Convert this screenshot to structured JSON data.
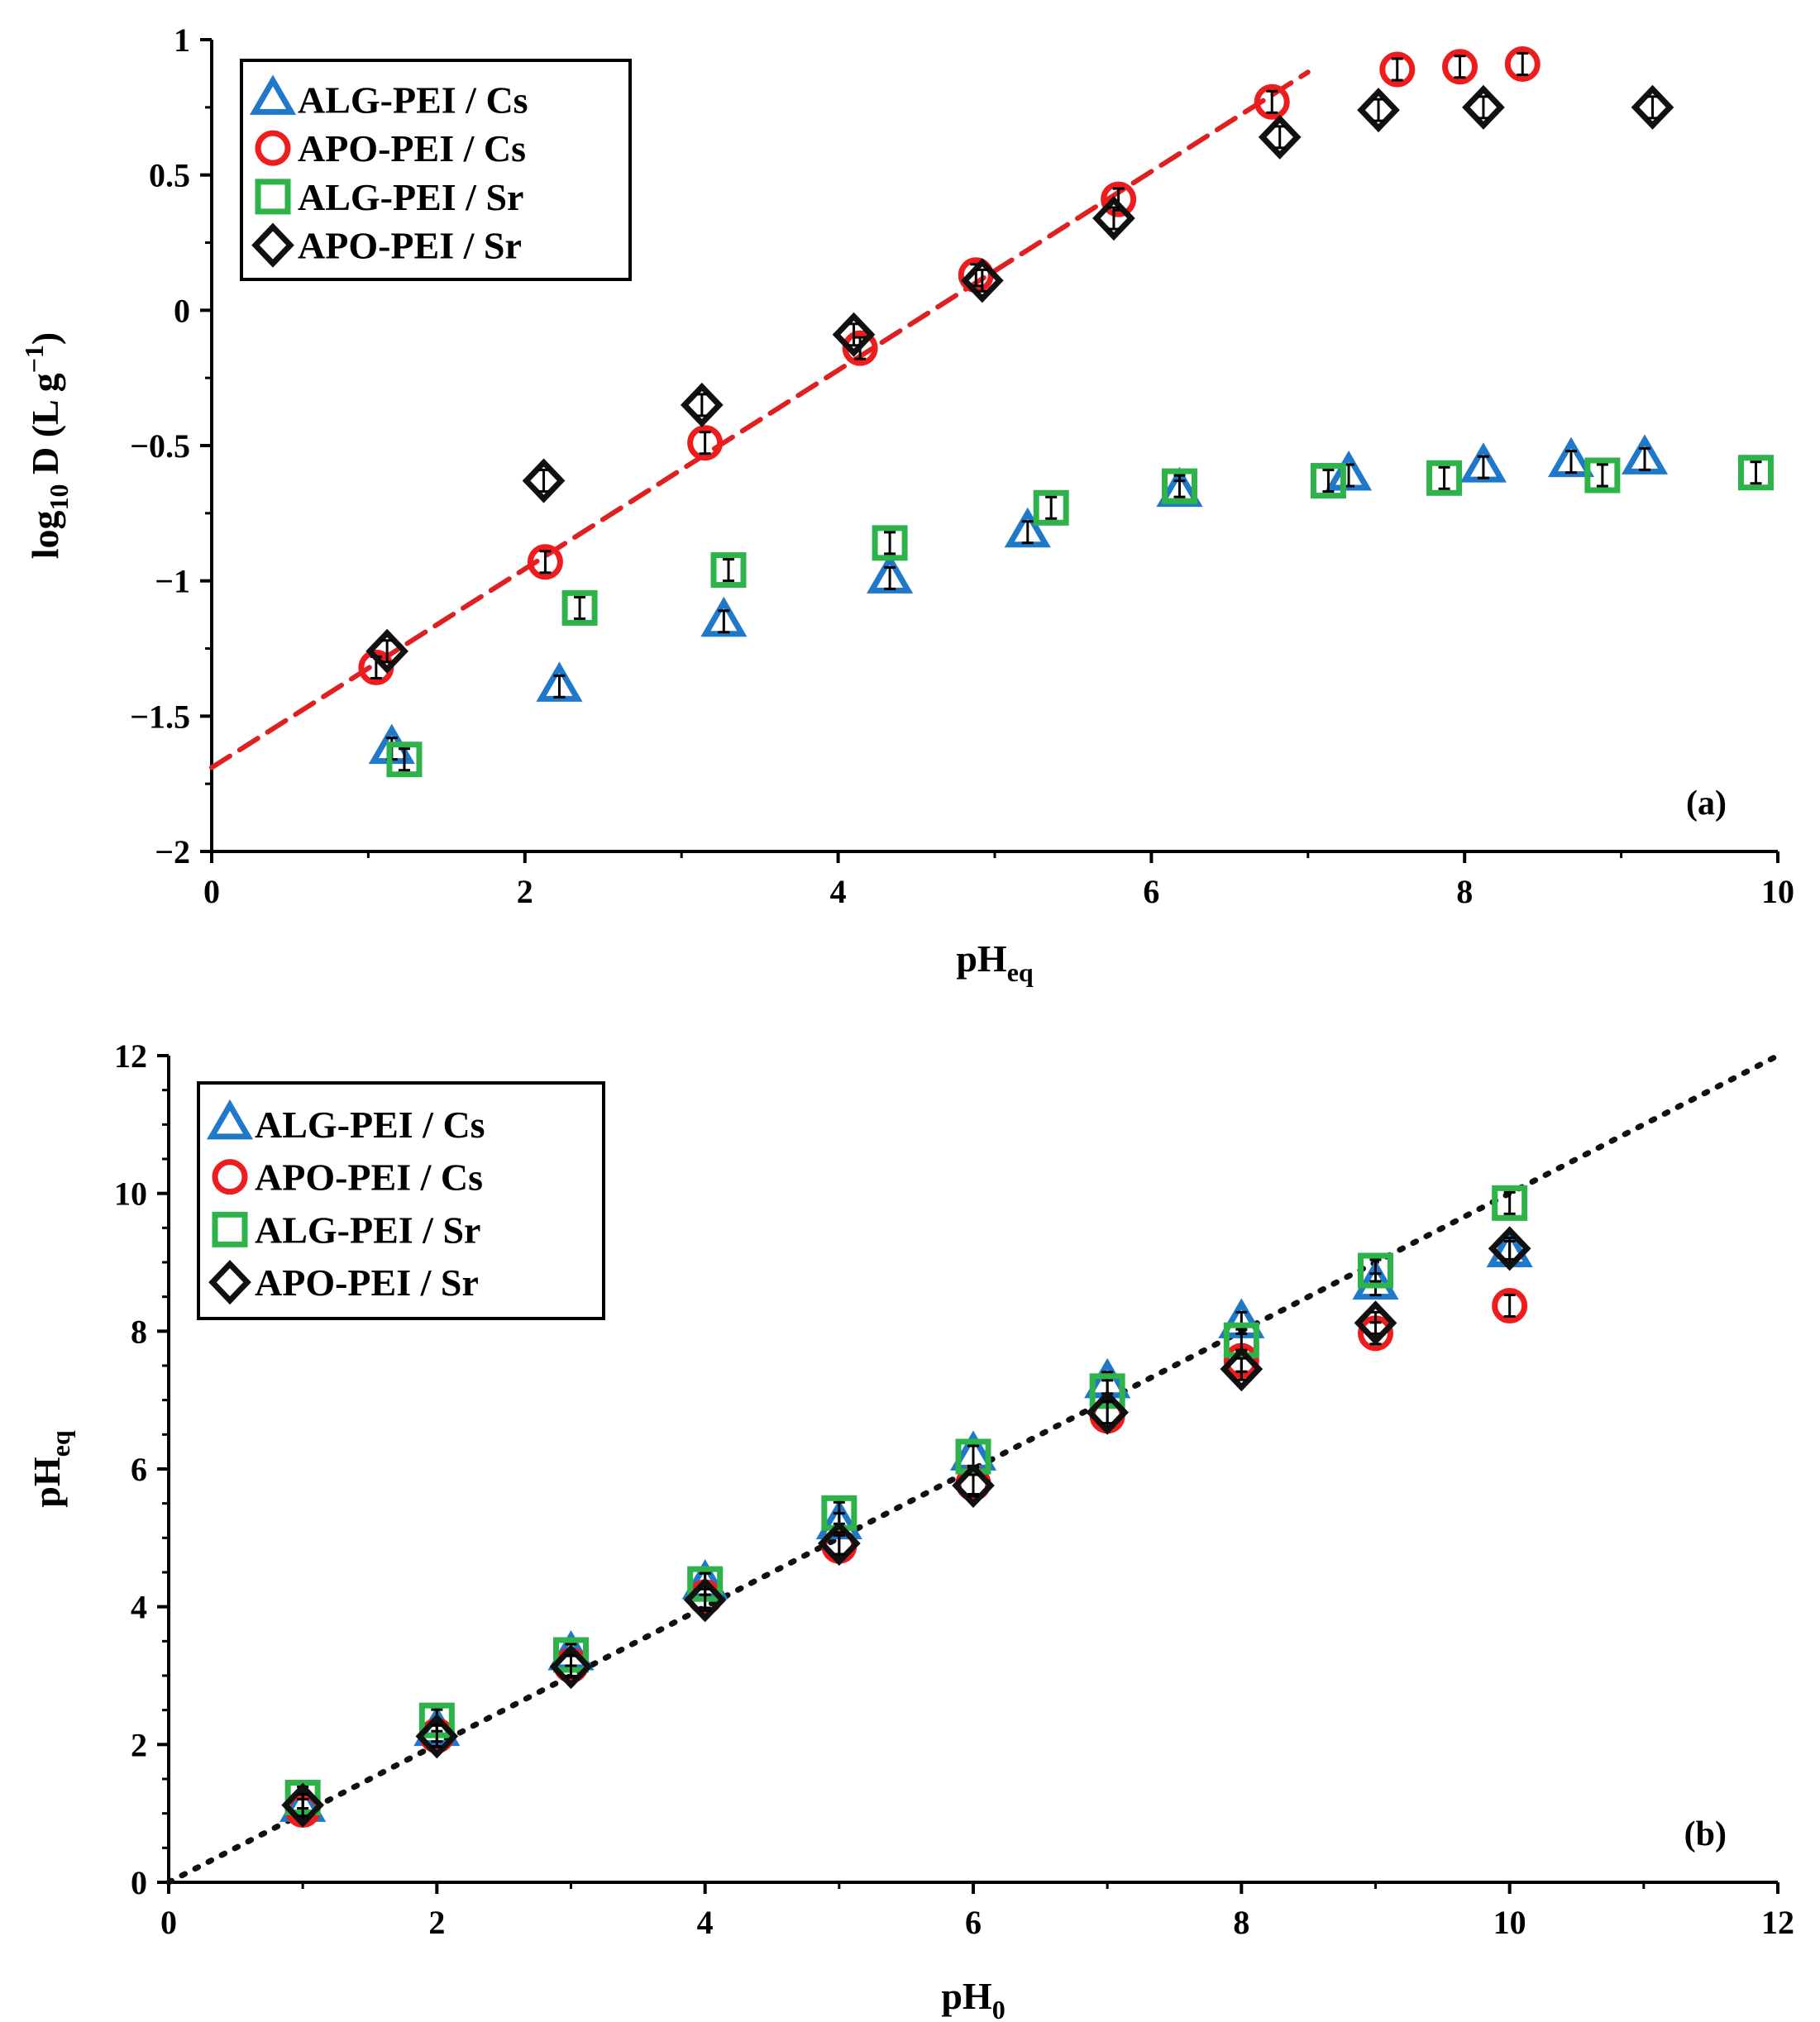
{
  "colors": {
    "alg_cs": "#1f78c8",
    "apo_cs": "#ee1c1c",
    "alg_sr": "#2eb34a",
    "apo_sr": "#111111",
    "fit_line": "#e02020",
    "identity_line": "#111111",
    "axis": "#000000"
  },
  "chart_data": [
    {
      "type": "scatter",
      "panel_label": "(a)",
      "xlabel": "pH",
      "xlabel_sub": "eq",
      "ylabel": "log",
      "ylabel_sub": "10",
      "ylabel_rest": " D (L g",
      "ylabel_sup": "−1",
      "ylabel_end": ")",
      "xlim": [
        0,
        10
      ],
      "ylim": [
        -2,
        1
      ],
      "xticks": [
        0,
        2,
        4,
        6,
        8,
        10
      ],
      "yticks": [
        -2,
        -1.5,
        -1,
        -0.5,
        0,
        0.5,
        1
      ],
      "xtick_labels": [
        "0",
        "2",
        "4",
        "6",
        "8",
        "10"
      ],
      "ytick_labels": [
        "−2",
        "−1.5",
        "−1",
        "−0.5",
        "0",
        "0.5",
        "1"
      ],
      "legend_position": "top-left",
      "series": [
        {
          "name": "ALG-PEI / Cs",
          "marker": "triangle",
          "color_key": "alg_cs",
          "x": [
            1.15,
            2.22,
            3.27,
            4.33,
            5.21,
            6.18,
            7.26,
            8.12,
            8.68,
            9.15
          ],
          "y": [
            -1.62,
            -1.39,
            -1.15,
            -0.99,
            -0.82,
            -0.67,
            -0.61,
            -0.58,
            -0.56,
            -0.55
          ]
        },
        {
          "name": "APO-PEI / Cs",
          "marker": "circle",
          "color_key": "apo_cs",
          "x": [
            1.05,
            2.13,
            3.15,
            4.14,
            4.88,
            5.79,
            6.77,
            7.57,
            7.97,
            8.37
          ],
          "y": [
            -1.32,
            -0.93,
            -0.49,
            -0.14,
            0.13,
            0.41,
            0.77,
            0.89,
            0.9,
            0.91
          ]
        },
        {
          "name": "ALG-PEI / Sr",
          "marker": "square",
          "color_key": "alg_sr",
          "x": [
            1.23,
            2.35,
            3.3,
            4.33,
            5.36,
            6.18,
            7.13,
            7.87,
            8.88,
            9.86
          ],
          "y": [
            -1.66,
            -1.1,
            -0.96,
            -0.86,
            -0.73,
            -0.65,
            -0.63,
            -0.62,
            -0.61,
            -0.6
          ]
        },
        {
          "name": "APO-PEI / Sr",
          "marker": "diamond",
          "color_key": "apo_sr",
          "x": [
            1.12,
            2.12,
            3.13,
            4.1,
            4.92,
            5.76,
            6.82,
            7.45,
            8.12,
            9.2
          ],
          "y": [
            -1.26,
            -0.63,
            -0.35,
            -0.09,
            0.11,
            0.34,
            0.64,
            0.74,
            0.75,
            0.75
          ]
        }
      ],
      "fit_line": {
        "style": "dashed",
        "color_key": "fit_line",
        "x": [
          0,
          7.0
        ],
        "y": [
          -1.69,
          0.88
        ]
      }
    },
    {
      "type": "scatter",
      "panel_label": "(b)",
      "xlabel": "pH",
      "xlabel_sub": "0",
      "ylabel": "pH",
      "ylabel_sub": "eq",
      "xlim": [
        0,
        12
      ],
      "ylim": [
        0,
        12
      ],
      "xticks": [
        0,
        2,
        4,
        6,
        8,
        10,
        12
      ],
      "yticks": [
        0,
        2,
        4,
        6,
        8,
        10,
        12
      ],
      "xtick_labels": [
        "0",
        "2",
        "4",
        "6",
        "8",
        "10",
        "12"
      ],
      "ytick_labels": [
        "0",
        "2",
        "4",
        "6",
        "8",
        "10",
        "12"
      ],
      "legend_position": "top-left",
      "series": [
        {
          "name": "ALG-PEI / Cs",
          "marker": "triangle",
          "color_key": "alg_cs",
          "x": [
            1,
            2,
            3,
            4,
            5,
            6,
            7,
            8,
            9,
            10
          ],
          "y": [
            1.1,
            2.2,
            3.3,
            4.33,
            5.2,
            6.2,
            7.25,
            8.12,
            8.68,
            9.15
          ]
        },
        {
          "name": "APO-PEI / Cs",
          "marker": "circle",
          "color_key": "apo_cs",
          "x": [
            1,
            2,
            3,
            4,
            5,
            6,
            7,
            8,
            9,
            10
          ],
          "y": [
            1.05,
            2.13,
            3.15,
            4.14,
            4.88,
            5.79,
            6.77,
            7.57,
            7.97,
            8.37
          ]
        },
        {
          "name": "ALG-PEI / Sr",
          "marker": "square",
          "color_key": "alg_sr",
          "x": [
            1,
            2,
            3,
            4,
            5,
            6,
            7,
            8,
            9,
            10
          ],
          "y": [
            1.23,
            2.35,
            3.3,
            4.33,
            5.36,
            6.18,
            7.13,
            7.87,
            8.88,
            9.86
          ]
        },
        {
          "name": "APO-PEI / Sr",
          "marker": "diamond",
          "color_key": "apo_sr",
          "x": [
            1,
            2,
            3,
            4,
            5,
            6,
            7,
            8,
            9,
            10
          ],
          "y": [
            1.12,
            2.12,
            3.13,
            4.1,
            4.92,
            5.76,
            6.82,
            7.45,
            8.12,
            9.2
          ]
        }
      ],
      "fit_line": {
        "style": "dotted",
        "color_key": "identity_line",
        "x": [
          0,
          12
        ],
        "y": [
          0,
          12
        ]
      }
    }
  ]
}
